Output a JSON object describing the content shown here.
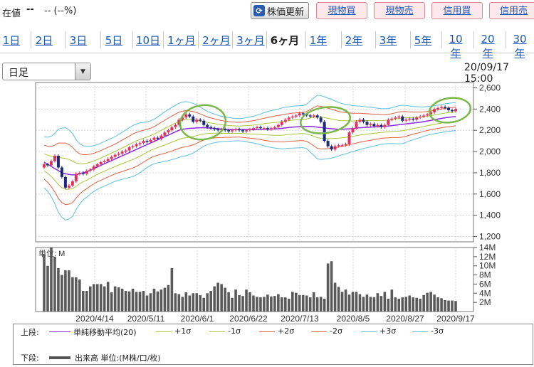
{
  "header": {
    "price_label": "在値",
    "price_value": "--",
    "price_change": "-- (--%)",
    "refresh_label": "株価更新",
    "trade_buttons": [
      "現物買",
      "現物売",
      "信用買",
      "信用売"
    ]
  },
  "period_tabs": [
    "1日",
    "2日",
    "3日",
    "5日",
    "10日",
    "1ヶ月",
    "2ヶ月",
    "3ヶ月",
    "6ヶ月",
    "1年",
    "2年",
    "3年",
    "5年",
    "10年",
    "20年",
    "30年"
  ],
  "active_tab_index": 8,
  "chart_type_select": {
    "value": "日足"
  },
  "datetime": "20/09/17 15:00",
  "legend": {
    "upper_label": "上段:",
    "lower_label": "下段:",
    "items": [
      {
        "name": "単純移動平均(20)",
        "color": "#8a2be2"
      },
      {
        "name": "+1σ",
        "color": "#a6c83a"
      },
      {
        "name": "-1σ",
        "color": "#a6c83a"
      },
      {
        "name": "+2σ",
        "color": "#e06040"
      },
      {
        "name": "-2σ",
        "color": "#e06040"
      },
      {
        "name": "+3σ",
        "color": "#5cc0dc"
      },
      {
        "name": "-3σ",
        "color": "#5cc0dc"
      }
    ],
    "volume_item": {
      "name": "出来高 単位:(M株/口/枚)",
      "color": "#555555"
    }
  },
  "chart_data": {
    "type": "candlestick",
    "price_axis": {
      "ticks": [
        "2,600",
        "2,400",
        "2,200",
        "2,000",
        "1,800",
        "1,600",
        "1,400",
        "1,200"
      ],
      "ylim": [
        1150,
        2650
      ]
    },
    "volume_axis": {
      "unit_label": "単位: M",
      "ticks": [
        "14M",
        "12M",
        "10M",
        "8M",
        "6M",
        "4M",
        "2M"
      ],
      "ylim": [
        0,
        14
      ]
    },
    "x_tick_labels": [
      "2020/4/14",
      "2020/5/11",
      "2020/6/1",
      "2020/6/22",
      "2020/7/13",
      "2020/8/5",
      "2020/8/27",
      "2020/9/17"
    ],
    "close": [
      1880,
      1870,
      1910,
      1960,
      1850,
      1760,
      1660,
      1680,
      1720,
      1790,
      1800,
      1790,
      1820,
      1830,
      1860,
      1880,
      1900,
      1910,
      1930,
      1950,
      1970,
      1980,
      2000,
      2010,
      2040,
      2050,
      2070,
      2080,
      2100,
      2090,
      2110,
      2130,
      2120,
      2150,
      2180,
      2200,
      2230,
      2250,
      2300,
      2320,
      2350,
      2330,
      2280,
      2300,
      2290,
      2250,
      2230,
      2220,
      2210,
      2200,
      2210,
      2200,
      2190,
      2200,
      2210,
      2200,
      2190,
      2200,
      2210,
      2220,
      2230,
      2220,
      2220,
      2210,
      2220,
      2230,
      2250,
      2280,
      2300,
      2320,
      2330,
      2340,
      2360,
      2350,
      2340,
      2330,
      2340,
      2320,
      2280,
      2100,
      2050,
      2020,
      2050,
      2060,
      2060,
      2070,
      2180,
      2220,
      2280,
      2300,
      2280,
      2250,
      2260,
      2240,
      2250,
      2230,
      2250,
      2300,
      2310,
      2320,
      2330,
      2290,
      2300,
      2310,
      2300,
      2320,
      2330,
      2340,
      2350,
      2370,
      2400,
      2410,
      2420,
      2410,
      2390,
      2380,
      2400
    ],
    "sma20": [
      1900,
      1880,
      1860,
      1840,
      1820,
      1800,
      1790,
      1785,
      1780,
      1782,
      1790,
      1800,
      1810,
      1825,
      1840,
      1855,
      1870,
      1885,
      1900,
      1915,
      1930,
      1945,
      1960,
      1975,
      1990,
      2005,
      2020,
      2035,
      2050,
      2065,
      2080,
      2095,
      2110,
      2125,
      2140,
      2155,
      2170,
      2185,
      2200,
      2210,
      2215,
      2218,
      2220,
      2222,
      2224,
      2224,
      2222,
      2220,
      2218,
      2215,
      2212,
      2210,
      2208,
      2207,
      2206,
      2206,
      2206,
      2206,
      2206,
      2207,
      2208,
      2209,
      2210,
      2211,
      2212,
      2213,
      2215,
      2218,
      2222,
      2226,
      2230,
      2232,
      2234,
      2235,
      2236,
      2236,
      2234,
      2230,
      2226,
      2222,
      2218,
      2215,
      2212,
      2210,
      2210,
      2212,
      2214,
      2216,
      2220,
      2224,
      2226,
      2228,
      2230,
      2232,
      2234,
      2236,
      2238,
      2240,
      2244,
      2248,
      2252,
      2256,
      2260,
      2264,
      2268,
      2272,
      2276,
      2282,
      2288,
      2294,
      2300,
      2306,
      2312,
      2318,
      2322,
      2326,
      2330
    ],
    "sigma": [
      80,
      85,
      95,
      110,
      130,
      140,
      145,
      140,
      130,
      110,
      95,
      85,
      80,
      75,
      72,
      70,
      70,
      70,
      70,
      70,
      70,
      72,
      74,
      76,
      78,
      80,
      80,
      78,
      75,
      72,
      70,
      70,
      72,
      75,
      78,
      80,
      82,
      84,
      85,
      85,
      85,
      82,
      78,
      72,
      65,
      58,
      52,
      48,
      45,
      42,
      40,
      38,
      37,
      36,
      35,
      35,
      36,
      38,
      40,
      42,
      45,
      48,
      52,
      55,
      58,
      60,
      62,
      64,
      65,
      65,
      66,
      66,
      66,
      66,
      70,
      80,
      90,
      100,
      100,
      98,
      95,
      92,
      88,
      84,
      80,
      78,
      75,
      72,
      70,
      68,
      66,
      64,
      62,
      60,
      58,
      56,
      55,
      55,
      56,
      58,
      60,
      60,
      58,
      55,
      52,
      50,
      48,
      46,
      45,
      44,
      44,
      44,
      44,
      44,
      44,
      44,
      44
    ],
    "volume": [
      12.5,
      10,
      14,
      12,
      9.5,
      8,
      9,
      9,
      7.5,
      7.5,
      7,
      4.5,
      4.5,
      5.5,
      6,
      6,
      6,
      5.5,
      6.5,
      4.2,
      5.5,
      5.3,
      5,
      4.5,
      4.4,
      5,
      4.3,
      4.3,
      4.5,
      3.5,
      4,
      5,
      4.4,
      4.8,
      5.2,
      5.8,
      9.5,
      4,
      3.8,
      3.2,
      4.2,
      3.5,
      4,
      4,
      3.6,
      3,
      4,
      4.5,
      5.5,
      6.3,
      6,
      5.2,
      4.2,
      3,
      4.8,
      3.6,
      3.4,
      4.8,
      4.2,
      3.5,
      3.2,
      3.1,
      3.2,
      3.7,
      3.3,
      3.4,
      3.8,
      3.1,
      3.1,
      2.8,
      4.3,
      4.1,
      3.6,
      3.6,
      3.5,
      3.1,
      4.2,
      3.1,
      3.2,
      2.8,
      10.5,
      11,
      6.3,
      5.4,
      4.3,
      4.8,
      3.7,
      4.3,
      4.3,
      3.8,
      3.2,
      3.7,
      3.2,
      3.1,
      4,
      3.4,
      4.3,
      2.8,
      4.8,
      3.1,
      2.8,
      3.1,
      3.2,
      3.5,
      3.1,
      3,
      2.8,
      3.6,
      4.1,
      4.3,
      3.7,
      3.1,
      2.9,
      2.5,
      2.4,
      2.4,
      2.3
    ]
  }
}
